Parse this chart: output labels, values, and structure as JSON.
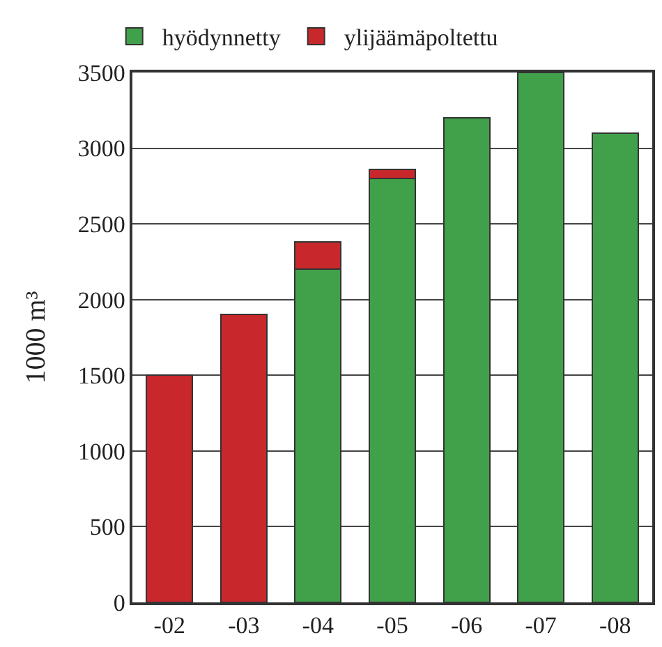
{
  "chart_data": {
    "type": "bar",
    "stacked": true,
    "ylabel": "1000 m³",
    "categories": [
      "-02",
      "-03",
      "-04",
      "-05",
      "-06",
      "-07",
      "-08"
    ],
    "series": [
      {
        "name": "hyödynnetty",
        "color": "#41a04a",
        "values": [
          null,
          null,
          2200,
          2800,
          3200,
          3500,
          3100
        ]
      },
      {
        "name": "ylijäämäpoltettu",
        "color": "#c8282b",
        "values": [
          1500,
          1900,
          180,
          60,
          null,
          null,
          null
        ]
      }
    ],
    "ylim": [
      0,
      3500
    ],
    "yticks": [
      0,
      500,
      1000,
      1500,
      2000,
      2500,
      3000,
      3500
    ],
    "grid": "y",
    "legend": "top left"
  }
}
